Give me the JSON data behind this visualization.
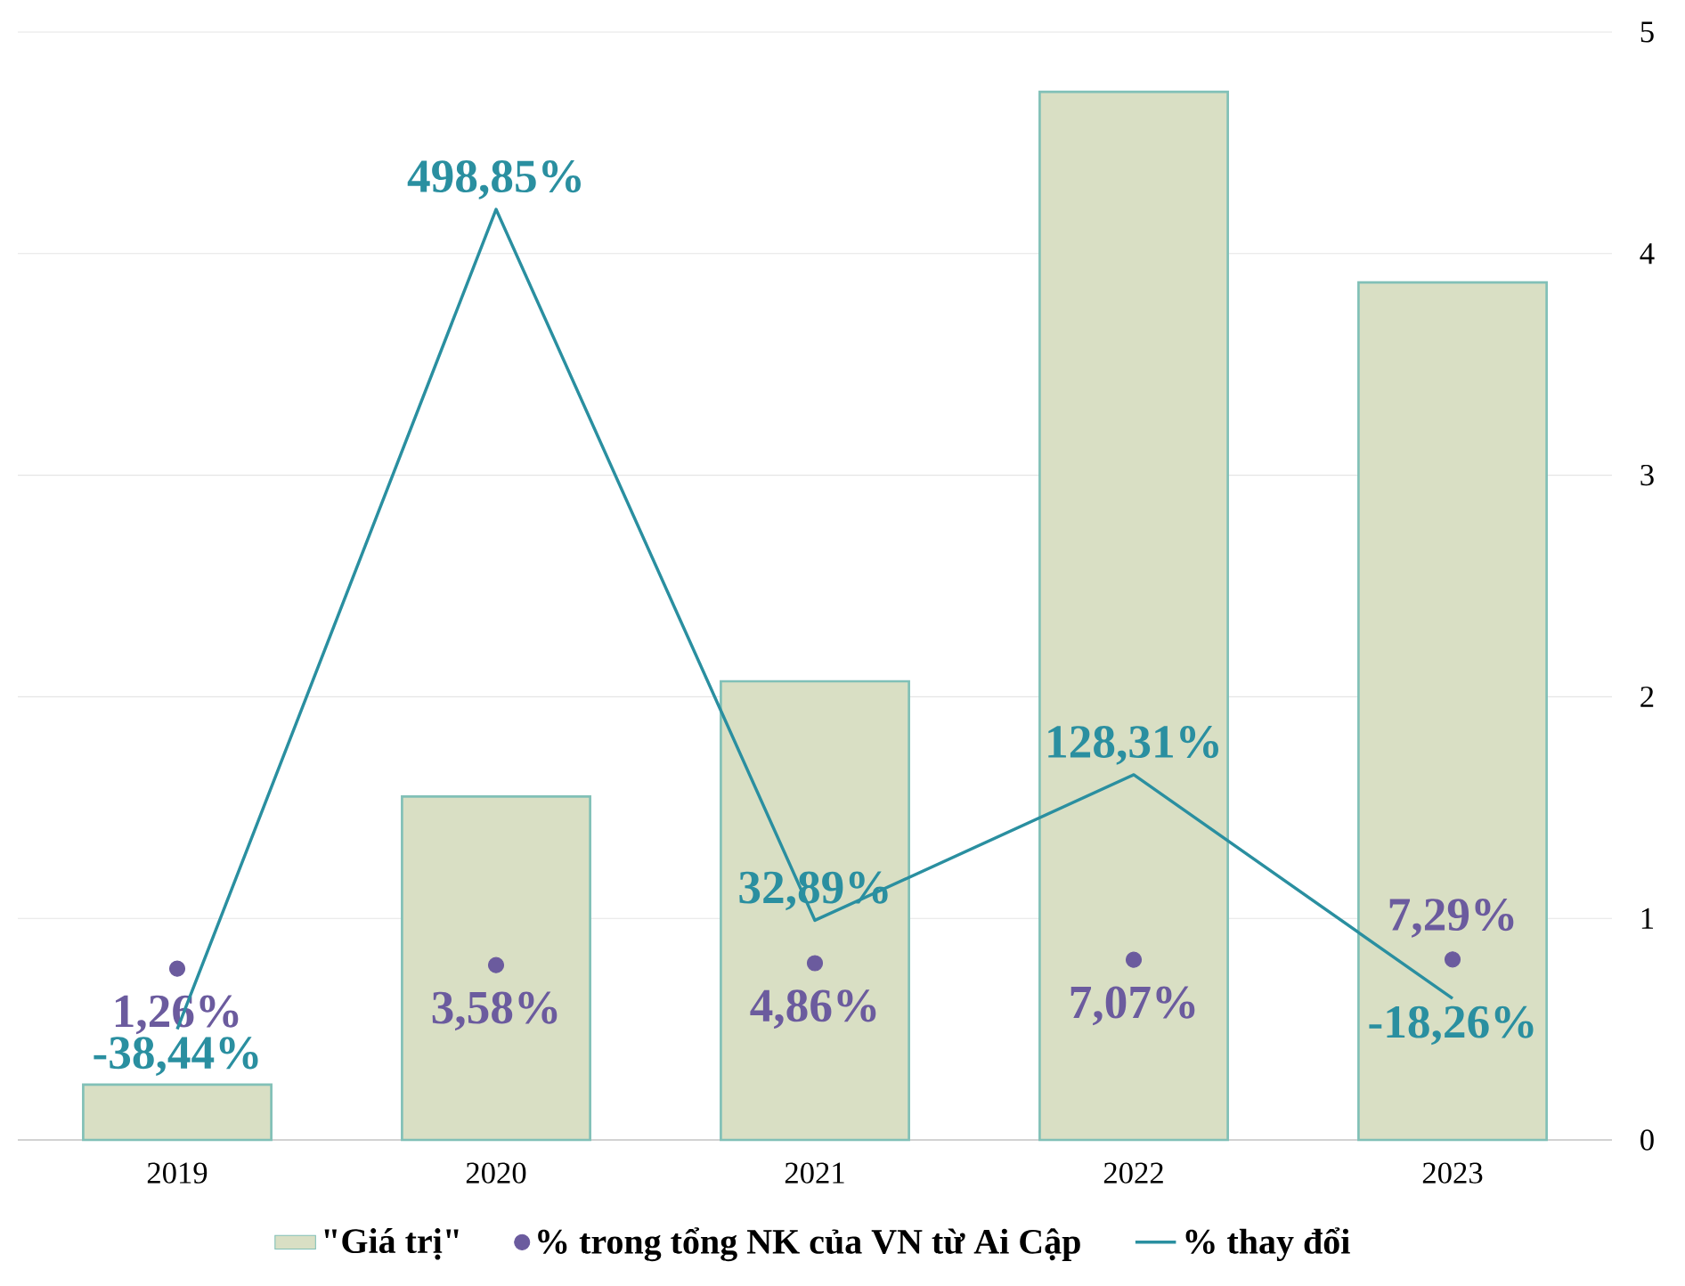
{
  "chart_data": {
    "type": "bar",
    "categories": [
      "2019",
      "2020",
      "2021",
      "2022",
      "2023"
    ],
    "series": [
      {
        "name": "\"Giá trị\"",
        "color": "#d9dfc4",
        "values": [
          0.25,
          1.55,
          2.07,
          4.73,
          3.87
        ]
      },
      {
        "name": "% trong tổng NK của VN từ Ai Cập",
        "type": "scatter",
        "axis": "y2",
        "marker": "circle",
        "color": "#6b5b9e",
        "values": [
          1.26,
          3.58,
          4.86,
          7.07,
          7.29
        ],
        "value_labels": [
          "1,26%",
          "3,58%",
          "4,86%",
          "7,07%",
          "7,29%"
        ]
      },
      {
        "name": "% thay đổi",
        "type": "line",
        "axis": "y2",
        "color": "#2a8fa0",
        "values": [
          -38.44,
          498.85,
          32.89,
          128.31,
          -18.26
        ],
        "value_labels": [
          "-38,44%",
          "498,85%",
          "32,89%",
          "128,31%",
          "-18,26%"
        ]
      }
    ],
    "ylim": [
      0,
      5
    ],
    "yticks": [
      0,
      1,
      2,
      3,
      4,
      5
    ],
    "y2lim": [
      -111,
      615
    ],
    "grid": "y",
    "legend": "bottom"
  }
}
